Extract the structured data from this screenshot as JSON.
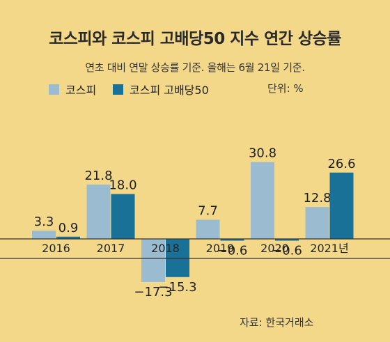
{
  "title": "코스피와 코스피 고배당50 지수 연간 상승률",
  "subtitle": "연초 대비 연말 상승률 기준. 올해는 6월 21일 기준.",
  "unit": "단위: %",
  "source": "자료: 한국거래소",
  "colors": {
    "background": "#f4d88a",
    "kospi": "#9bbcd0",
    "kospi_high_div50": "#1a7198",
    "axis": "#333333"
  },
  "chart_data": {
    "type": "bar",
    "title": "코스피와 코스피 고배당50 지수 연간 상승률",
    "categories": [
      "2016",
      "2017",
      "2018",
      "2019",
      "2020",
      "2021년"
    ],
    "series": [
      {
        "name": "코스피",
        "values": [
          3.3,
          21.8,
          -17.3,
          7.7,
          30.8,
          12.8
        ],
        "labels": [
          "3.3",
          "21.8",
          "−17.3",
          "7.7",
          "30.8",
          "12.8"
        ]
      },
      {
        "name": "코스피 고배당50",
        "values": [
          0.9,
          18.0,
          -15.3,
          -0.6,
          -0.6,
          26.6
        ],
        "labels": [
          "0.9",
          "18.0",
          "−15.3",
          "−0.6",
          "−0.6",
          "26.6"
        ]
      }
    ],
    "ylim": [
      -18,
      31
    ],
    "legend": "top-left",
    "grid": false
  }
}
